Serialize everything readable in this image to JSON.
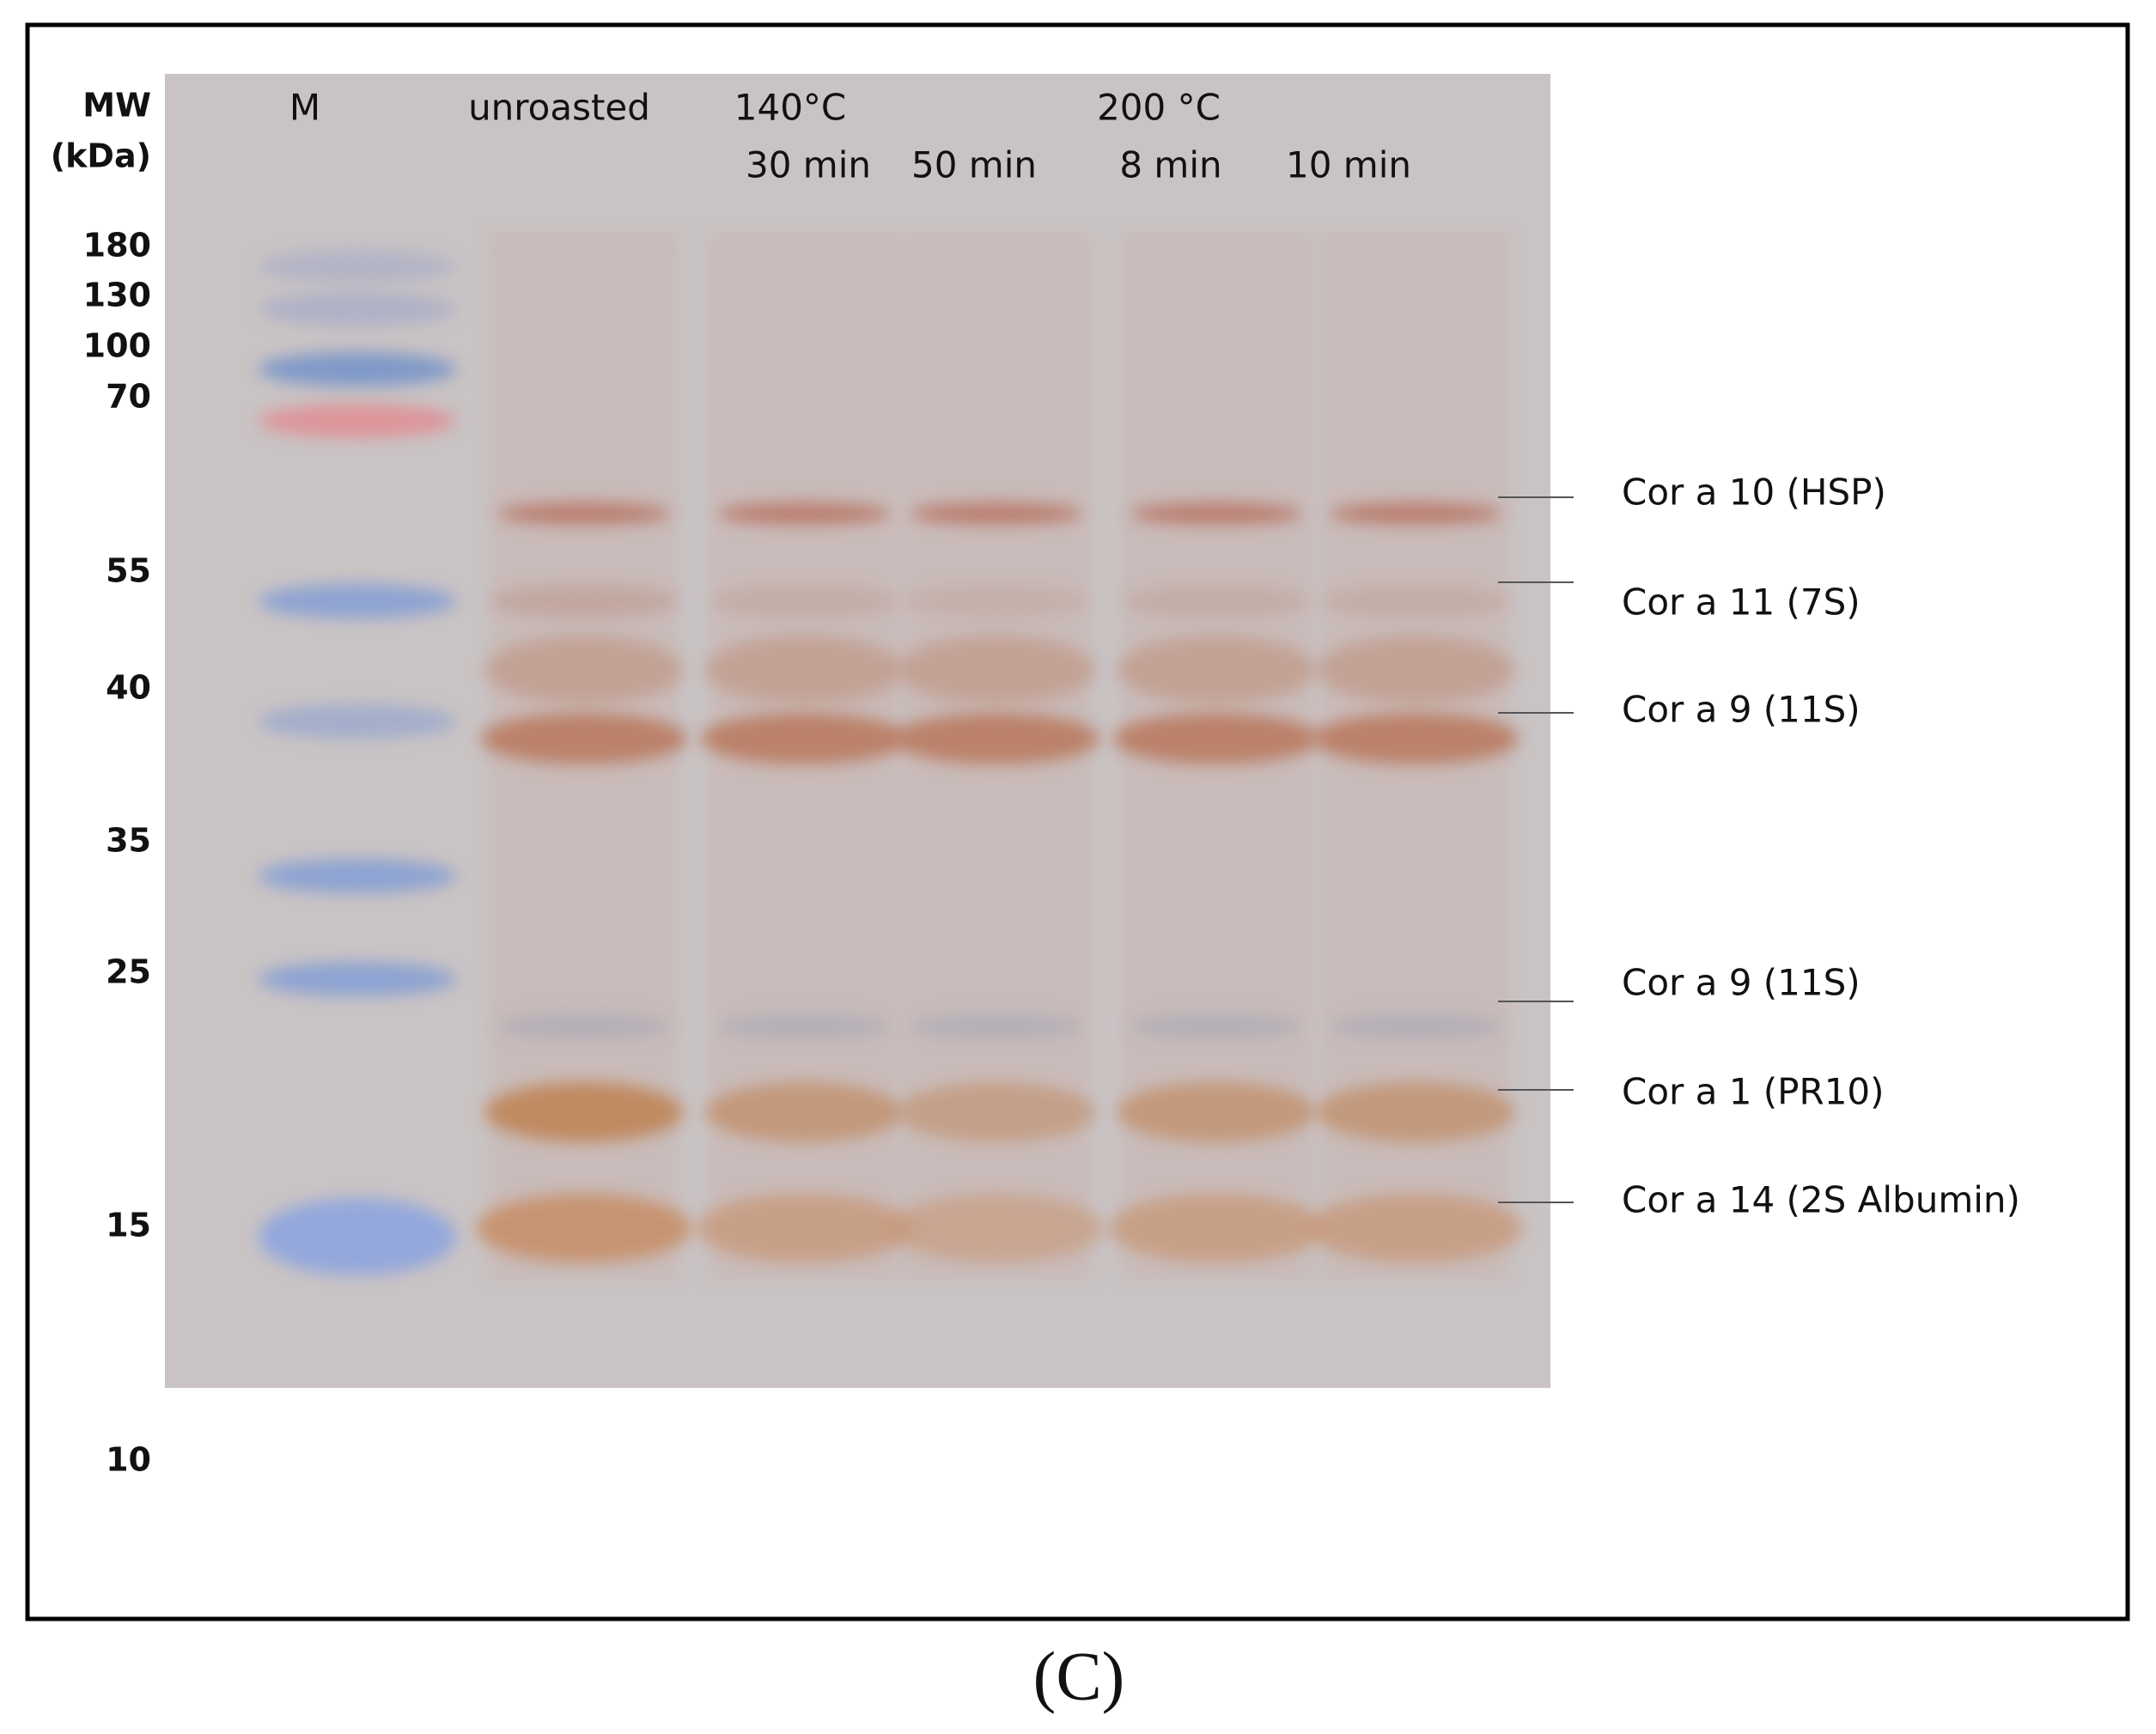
{
  "figure": {
    "mw_header": [
      "MW",
      "(kDa)"
    ],
    "mw_markers": [
      "180",
      "130",
      "100",
      "70",
      "55",
      "40",
      "35",
      "25",
      "15",
      "10"
    ],
    "lane_headers": {
      "marker": "M",
      "unroasted": "unroasted",
      "temp_140": "140°C",
      "temp_200": "200 °C",
      "times": [
        "30 min",
        "50 min",
        "8 min",
        "10 min"
      ]
    },
    "band_labels": [
      "Cor a 10 (HSP)",
      "Cor a 11 (7S)",
      "Cor a 9 (11S)",
      "Cor a 9 (11S)",
      "Cor a 1 (PR10)",
      "Cor a 14 (2S Albumin)"
    ],
    "panel_label": "(C)"
  }
}
